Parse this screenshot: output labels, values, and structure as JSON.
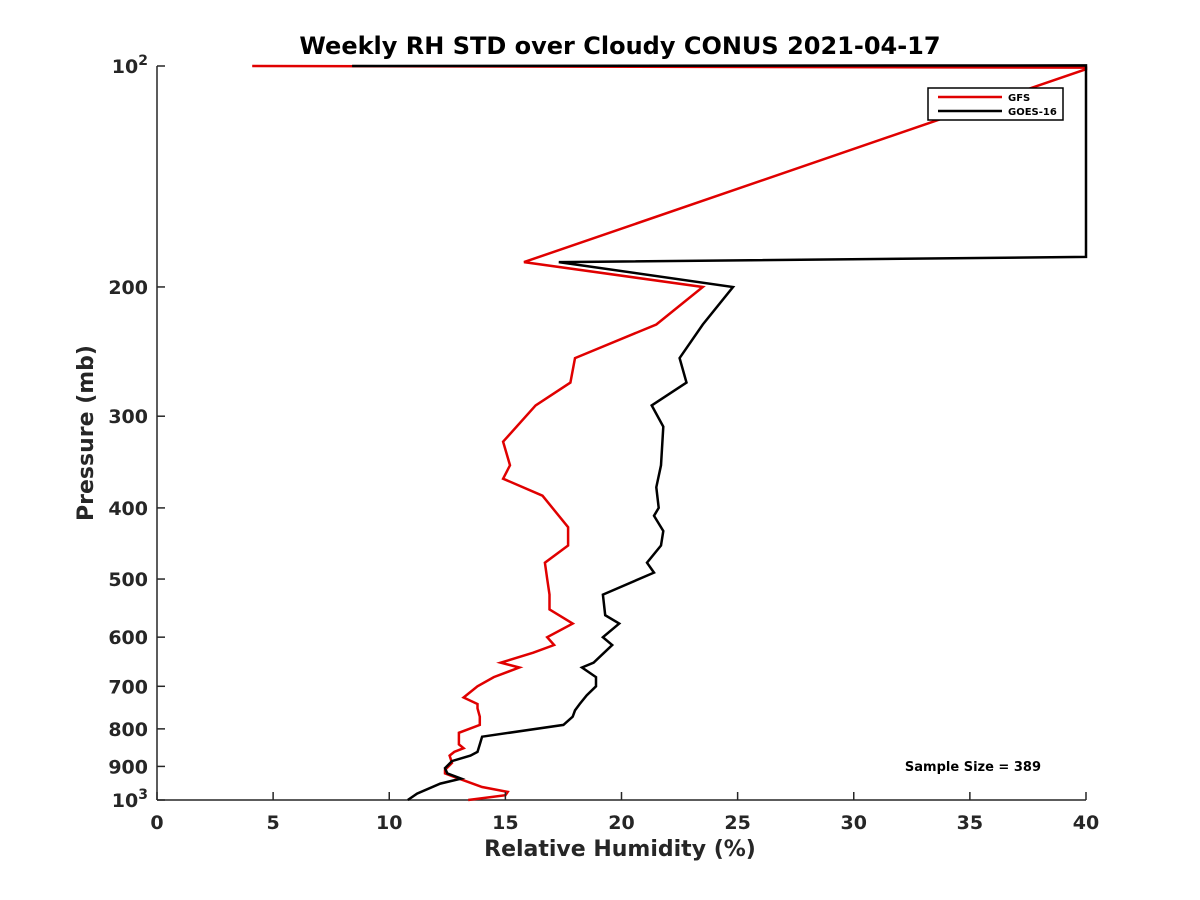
{
  "chart_data": {
    "type": "line",
    "title": "Weekly RH STD over Cloudy CONUS 2021-04-17",
    "xlabel": "Relative Humidity (%)",
    "ylabel": "Pressure (mb)",
    "xlim": [
      0,
      40
    ],
    "ylim": [
      100,
      1000
    ],
    "yscale": "log",
    "y_reversed": true,
    "grid": false,
    "legend_position": "top-right",
    "x_ticks": [
      0,
      5,
      10,
      15,
      20,
      25,
      30,
      35,
      40
    ],
    "x_tick_labels": [
      "0",
      "5",
      "10",
      "15",
      "20",
      "25",
      "30",
      "35",
      "40"
    ],
    "y_ticks": [
      100,
      200,
      300,
      400,
      500,
      600,
      700,
      800,
      900,
      1000
    ],
    "y_tick_labels": [
      {
        "base": "10",
        "sup": "2"
      },
      {
        "base": "200",
        "sup": ""
      },
      {
        "base": "300",
        "sup": ""
      },
      {
        "base": "400",
        "sup": ""
      },
      {
        "base": "500",
        "sup": ""
      },
      {
        "base": "600",
        "sup": ""
      },
      {
        "base": "700",
        "sup": ""
      },
      {
        "base": "800",
        "sup": ""
      },
      {
        "base": "900",
        "sup": ""
      },
      {
        "base": "10",
        "sup": "3"
      }
    ],
    "annotation": "Sample Size = 389",
    "series": [
      {
        "name": "GFS",
        "color": "#e00000",
        "points": [
          [
            4.1,
            100
          ],
          [
            40,
            100.5
          ],
          [
            40,
            101
          ],
          [
            15.8,
            185
          ],
          [
            23.5,
            200
          ],
          [
            21.5,
            225
          ],
          [
            18.0,
            250
          ],
          [
            17.8,
            270
          ],
          [
            16.3,
            290
          ],
          [
            14.9,
            325
          ],
          [
            15.2,
            350
          ],
          [
            14.9,
            365
          ],
          [
            16.6,
            385
          ],
          [
            17.7,
            425
          ],
          [
            17.7,
            450
          ],
          [
            16.7,
            475
          ],
          [
            16.8,
            500
          ],
          [
            16.9,
            525
          ],
          [
            16.9,
            550
          ],
          [
            17.9,
            575
          ],
          [
            16.8,
            600
          ],
          [
            17.1,
            615
          ],
          [
            16.2,
            630
          ],
          [
            14.8,
            650
          ],
          [
            15.6,
            660
          ],
          [
            14.5,
            680
          ],
          [
            13.8,
            700
          ],
          [
            13.2,
            725
          ],
          [
            13.8,
            740
          ],
          [
            13.8,
            750
          ],
          [
            13.9,
            770
          ],
          [
            13.9,
            790
          ],
          [
            13.0,
            810
          ],
          [
            13.0,
            840
          ],
          [
            13.2,
            850
          ],
          [
            12.8,
            860
          ],
          [
            12.6,
            870
          ],
          [
            12.7,
            890
          ],
          [
            12.4,
            910
          ],
          [
            12.4,
            920
          ],
          [
            12.8,
            930
          ],
          [
            14.0,
            960
          ],
          [
            15.1,
            975
          ],
          [
            15.0,
            985
          ],
          [
            13.4,
            1000
          ]
        ]
      },
      {
        "name": "GOES-16",
        "color": "#000000",
        "points": [
          [
            8.4,
            100
          ],
          [
            40,
            99.8
          ],
          [
            40,
            182
          ],
          [
            17.3,
            185
          ],
          [
            24.8,
            200
          ],
          [
            23.5,
            225
          ],
          [
            22.5,
            250
          ],
          [
            22.8,
            270
          ],
          [
            21.3,
            290
          ],
          [
            21.8,
            310
          ],
          [
            21.7,
            350
          ],
          [
            21.5,
            375
          ],
          [
            21.6,
            400
          ],
          [
            21.4,
            410
          ],
          [
            21.8,
            430
          ],
          [
            21.7,
            450
          ],
          [
            21.1,
            475
          ],
          [
            21.4,
            490
          ],
          [
            19.2,
            525
          ],
          [
            19.3,
            560
          ],
          [
            19.9,
            575
          ],
          [
            19.2,
            600
          ],
          [
            19.6,
            615
          ],
          [
            18.8,
            650
          ],
          [
            18.3,
            660
          ],
          [
            18.9,
            680
          ],
          [
            18.9,
            700
          ],
          [
            18.5,
            720
          ],
          [
            18.2,
            740
          ],
          [
            18.0,
            755
          ],
          [
            17.9,
            770
          ],
          [
            17.5,
            790
          ],
          [
            14.0,
            820
          ],
          [
            13.9,
            840
          ],
          [
            13.8,
            860
          ],
          [
            13.5,
            870
          ],
          [
            12.7,
            885
          ],
          [
            12.4,
            905
          ],
          [
            12.5,
            920
          ],
          [
            13.1,
            935
          ],
          [
            12.2,
            950
          ],
          [
            11.2,
            980
          ],
          [
            10.8,
            1000
          ]
        ]
      }
    ]
  }
}
